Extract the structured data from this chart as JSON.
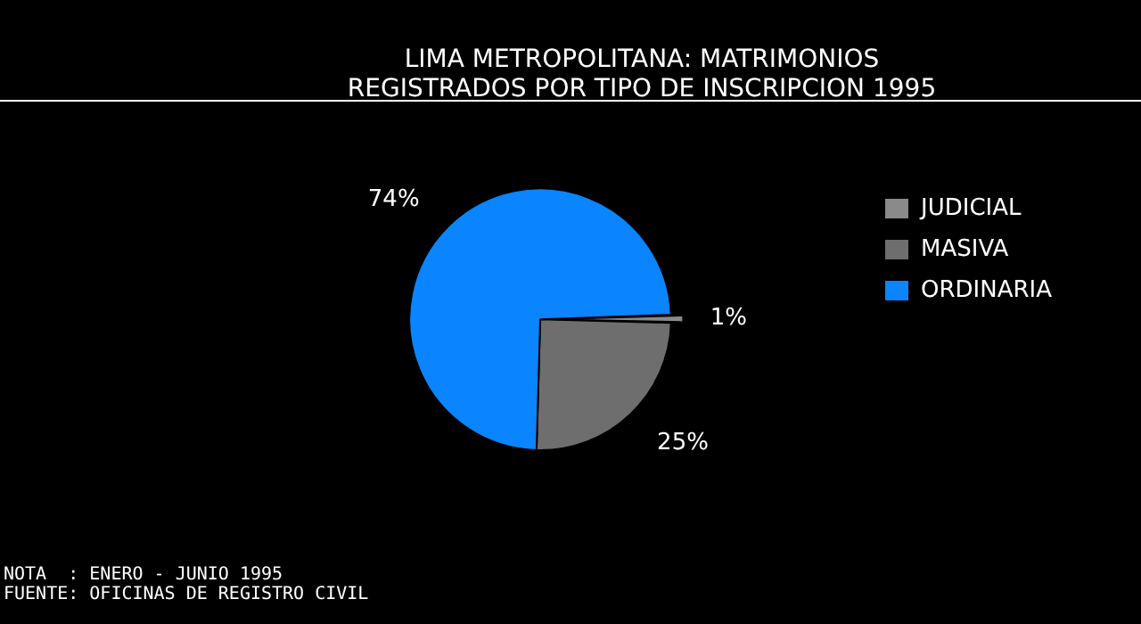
{
  "chart_data": {
    "type": "pie",
    "title": [
      "LIMA METROPOLITANA: MATRIMONIOS",
      "REGISTRADOS POR TIPO DE INSCRIPCION 1995"
    ],
    "categories": [
      "JUDICIAL",
      "MASIVA",
      "ORDINARIA"
    ],
    "values": [
      1,
      25,
      74
    ],
    "value_labels": [
      "1%",
      "25%",
      "74%"
    ],
    "colors": [
      "#8a8a8a",
      "#6e6e6e",
      "#0a84ff"
    ],
    "legend": "right",
    "annotations": [
      "NOTA  : ENERO - JUNIO 1995",
      "FUENTE: OFICINAS DE REGISTRO CIVIL"
    ]
  }
}
